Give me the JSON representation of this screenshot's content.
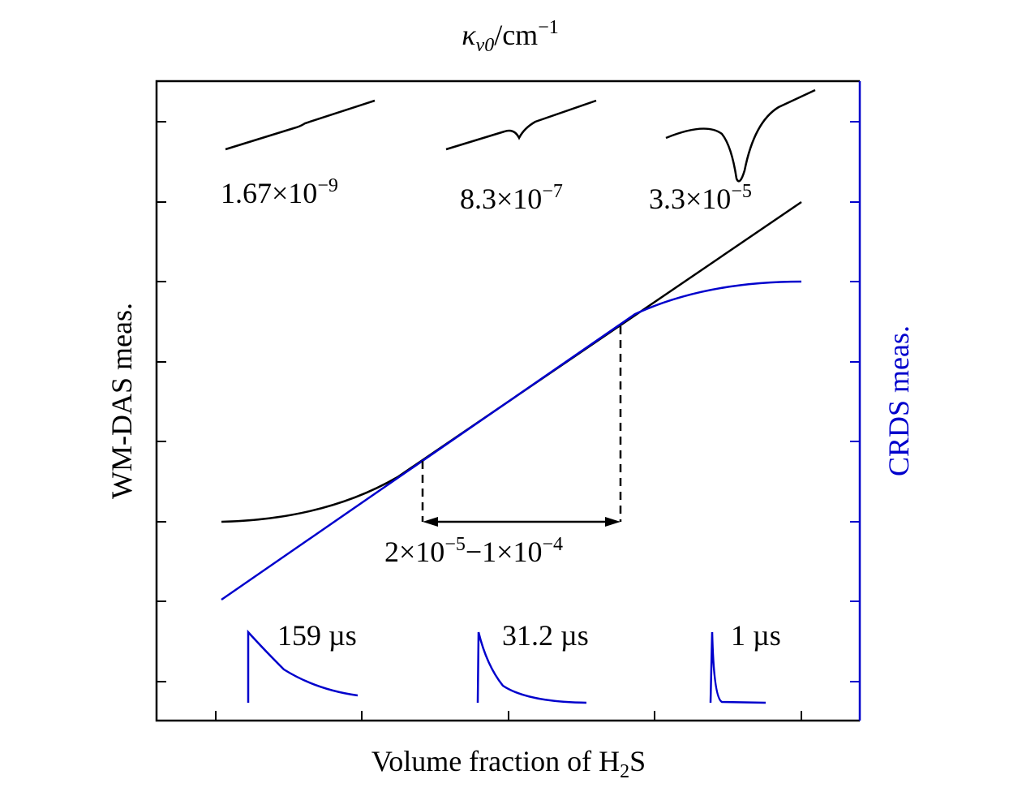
{
  "top_label": {
    "symbol": "κ",
    "subscript": "ν0",
    "unit": "/cm",
    "superscript": "−1"
  },
  "y_label": "WM-DAS meas.",
  "y2_label": "CRDS meas.",
  "x_label": {
    "before": "Volume fraction of H",
    "subscript": "2",
    "after": "S"
  },
  "spectra_labels": [
    {
      "mantissa": "1.67×10",
      "exponent": "−9"
    },
    {
      "mantissa": "8.3×10",
      "exponent": "−7"
    },
    {
      "mantissa": "3.3×10",
      "exponent": "−5"
    }
  ],
  "range_label": {
    "part1": "2×10",
    "exp1": "−5",
    "part2": "−1×10",
    "exp2": "−4"
  },
  "decay_labels": [
    "159 µs",
    "31.2 µs",
    "1 µs"
  ]
}
